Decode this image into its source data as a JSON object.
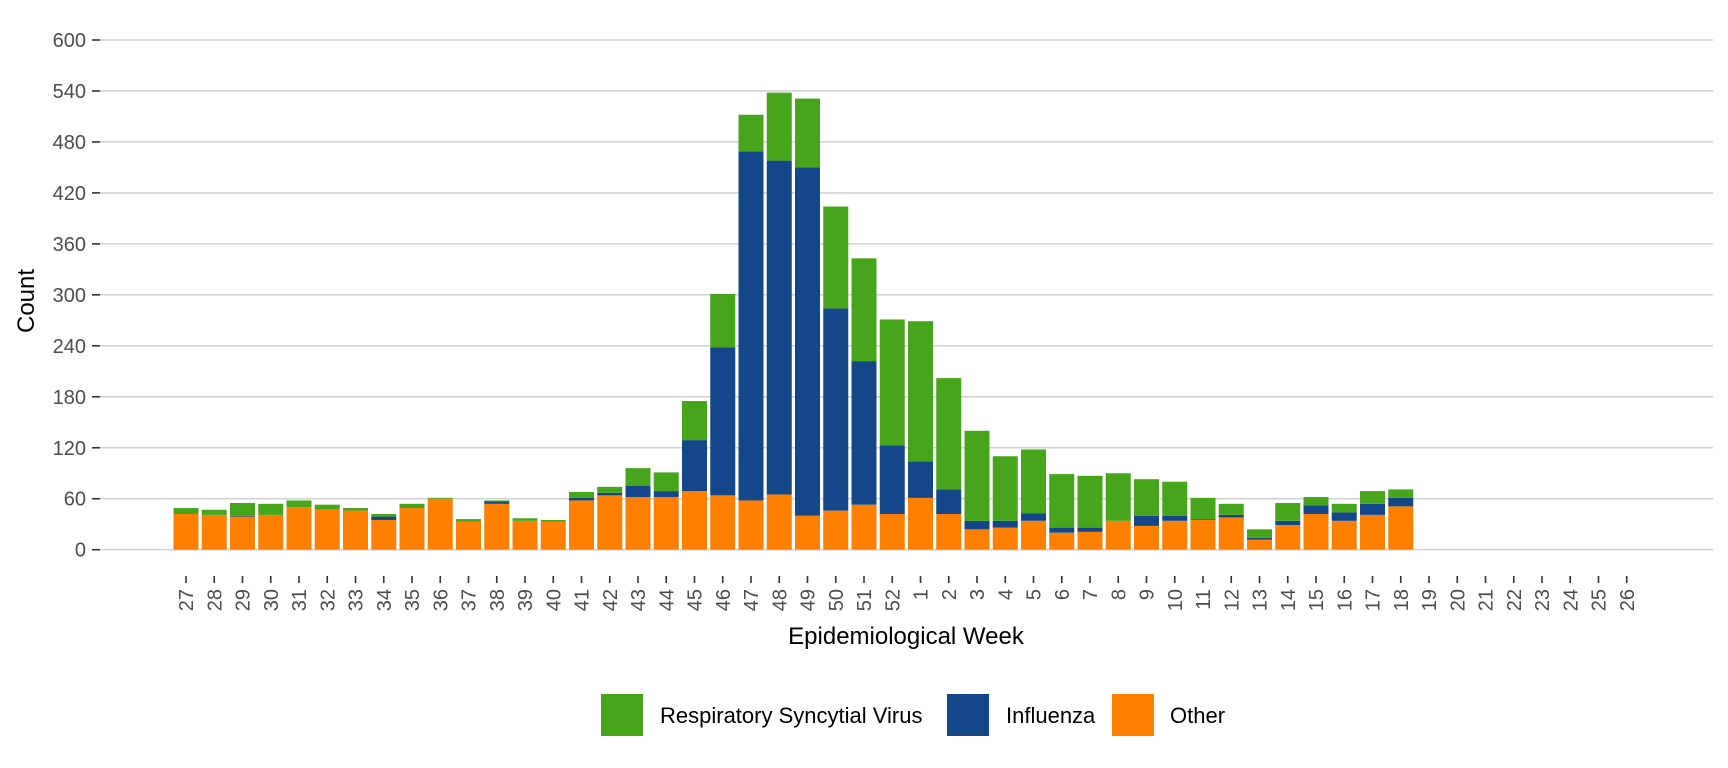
{
  "chart_data": {
    "type": "bar",
    "stacked": true,
    "title": "",
    "xlabel": "Epidemiological Week",
    "ylabel": "Count",
    "ylim": [
      0,
      600
    ],
    "yticks": [
      0,
      60,
      120,
      180,
      240,
      300,
      360,
      420,
      480,
      540,
      600
    ],
    "grid": "horizontal",
    "legend_position": "bottom",
    "categories": [
      "27",
      "28",
      "29",
      "30",
      "31",
      "32",
      "33",
      "34",
      "35",
      "36",
      "37",
      "38",
      "39",
      "40",
      "41",
      "42",
      "43",
      "44",
      "45",
      "46",
      "47",
      "48",
      "49",
      "50",
      "51",
      "52",
      "1",
      "2",
      "3",
      "4",
      "5",
      "6",
      "7",
      "8",
      "9",
      "10",
      "11",
      "12",
      "13",
      "14",
      "15",
      "16",
      "17",
      "18",
      "19",
      "20",
      "21",
      "22",
      "23",
      "24",
      "25",
      "26"
    ],
    "series": [
      {
        "name": "Other",
        "color": "#FF7F00",
        "values": [
          42,
          41,
          39,
          41,
          50,
          47,
          46,
          35,
          49,
          60,
          33,
          54,
          34,
          33,
          58,
          64,
          62,
          62,
          69,
          64,
          58,
          65,
          40,
          46,
          53,
          42,
          61,
          42,
          24,
          26,
          34,
          20,
          21,
          34,
          28,
          34,
          35,
          38,
          12,
          29,
          42,
          34,
          41,
          51,
          null,
          null,
          null,
          null,
          null,
          null,
          null,
          null
        ]
      },
      {
        "name": "Influenza",
        "color": "#144789",
        "values": [
          0,
          0,
          1,
          0,
          0,
          0,
          0,
          4,
          0,
          0,
          0,
          3,
          0,
          0,
          3,
          3,
          13,
          7,
          60,
          174,
          411,
          393,
          410,
          238,
          169,
          81,
          43,
          29,
          10,
          8,
          9,
          6,
          5,
          0,
          12,
          6,
          1,
          3,
          2,
          5,
          10,
          10,
          13,
          10,
          null,
          null,
          null,
          null,
          null,
          null,
          null,
          null
        ]
      },
      {
        "name": "Respiratory Syncytial Virus",
        "color": "#47A51B",
        "values": [
          7,
          6,
          15,
          13,
          8,
          6,
          3,
          3,
          5,
          1,
          3,
          1,
          3,
          2,
          7,
          7,
          21,
          22,
          46,
          63,
          43,
          80,
          81,
          120,
          121,
          148,
          165,
          131,
          106,
          76,
          75,
          63,
          61,
          56,
          43,
          40,
          25,
          13,
          10,
          21,
          10,
          10,
          15,
          10,
          null,
          null,
          null,
          null,
          null,
          null,
          null,
          null
        ]
      }
    ],
    "legend": [
      {
        "label": "Respiratory Syncytial Virus",
        "color": "#47A51B"
      },
      {
        "label": "Influenza",
        "color": "#144789"
      },
      {
        "label": "Other",
        "color": "#FF7F00"
      }
    ]
  }
}
